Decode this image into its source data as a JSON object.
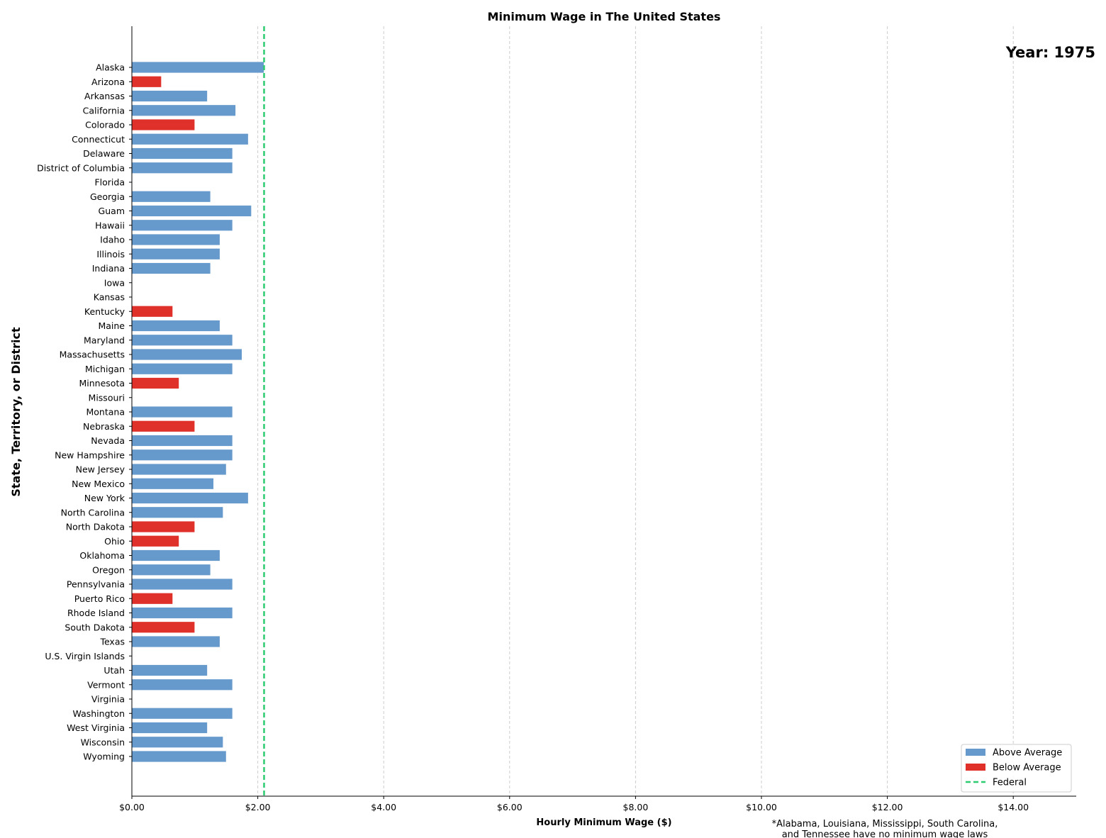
{
  "chart_data": {
    "type": "bar",
    "orientation": "horizontal",
    "title": "Minimum Wage in The United States",
    "xlabel": "Hourly Minimum Wage ($)",
    "ylabel": "State, Territory, or District",
    "annotation": "Year: 1975",
    "footnote": [
      "*Alabama, Louisiana, Mississippi, South Carolina,",
      "and Tennessee have no minimum wage laws"
    ],
    "xlim": [
      0,
      15
    ],
    "xticks": [
      0,
      2,
      4,
      6,
      8,
      10,
      12,
      14
    ],
    "xtick_labels": [
      "$0.00",
      "$2.00",
      "$4.00",
      "$6.00",
      "$8.00",
      "$10.00",
      "$12.00",
      "$14.00"
    ],
    "grid": "x-dashed",
    "federal": 2.1,
    "colors": {
      "above": "#6699cc",
      "below": "#e0302a",
      "federal": "#2ecc71",
      "grid": "#cccccc"
    },
    "legend": {
      "placement": "bottom-right",
      "entries": [
        {
          "label": "Above Average",
          "kind": "patch",
          "color": "#6699cc"
        },
        {
          "label": "Below Average",
          "kind": "patch",
          "color": "#e0302a"
        },
        {
          "label": "Federal",
          "kind": "dashed-line",
          "color": "#2ecc71"
        }
      ]
    },
    "categories": [
      "Alaska",
      "Arizona",
      "Arkansas",
      "California",
      "Colorado",
      "Connecticut",
      "Delaware",
      "District of Columbia",
      "Florida",
      "Georgia",
      "Guam",
      "Hawaii",
      "Idaho",
      "Illinois",
      "Indiana",
      "Iowa",
      "Kansas",
      "Kentucky",
      "Maine",
      "Maryland",
      "Massachusetts",
      "Michigan",
      "Minnesota",
      "Missouri",
      "Montana",
      "Nebraska",
      "Nevada",
      "New Hampshire",
      "New Jersey",
      "New Mexico",
      "New York",
      "North Carolina",
      "North Dakota",
      "Ohio",
      "Oklahoma",
      "Oregon",
      "Pennsylvania",
      "Puerto Rico",
      "Rhode Island",
      "South Dakota",
      "Texas",
      "U.S. Virgin Islands",
      "Utah",
      "Vermont",
      "Virginia",
      "Washington",
      "West Virginia",
      "Wisconsin",
      "Wyoming"
    ],
    "values": [
      2.1,
      0.47,
      1.2,
      1.65,
      1.0,
      1.85,
      1.6,
      1.6,
      0,
      1.25,
      1.9,
      1.6,
      1.4,
      1.4,
      1.25,
      0,
      0,
      0.65,
      1.4,
      1.6,
      1.75,
      1.6,
      0.75,
      0,
      1.6,
      1.0,
      1.6,
      1.6,
      1.5,
      1.3,
      1.85,
      1.45,
      1.0,
      0.75,
      1.4,
      1.25,
      1.6,
      0.65,
      1.6,
      1.0,
      1.4,
      0,
      1.2,
      1.6,
      0,
      1.6,
      1.2,
      1.45,
      1.5
    ],
    "groups": [
      "above",
      "below",
      "above",
      "above",
      "below",
      "above",
      "above",
      "above",
      "none",
      "above",
      "above",
      "above",
      "above",
      "above",
      "above",
      "none",
      "none",
      "below",
      "above",
      "above",
      "above",
      "above",
      "below",
      "none",
      "above",
      "below",
      "above",
      "above",
      "above",
      "above",
      "above",
      "above",
      "below",
      "below",
      "above",
      "above",
      "above",
      "below",
      "above",
      "below",
      "above",
      "none",
      "above",
      "above",
      "none",
      "above",
      "above",
      "above",
      "above"
    ]
  }
}
